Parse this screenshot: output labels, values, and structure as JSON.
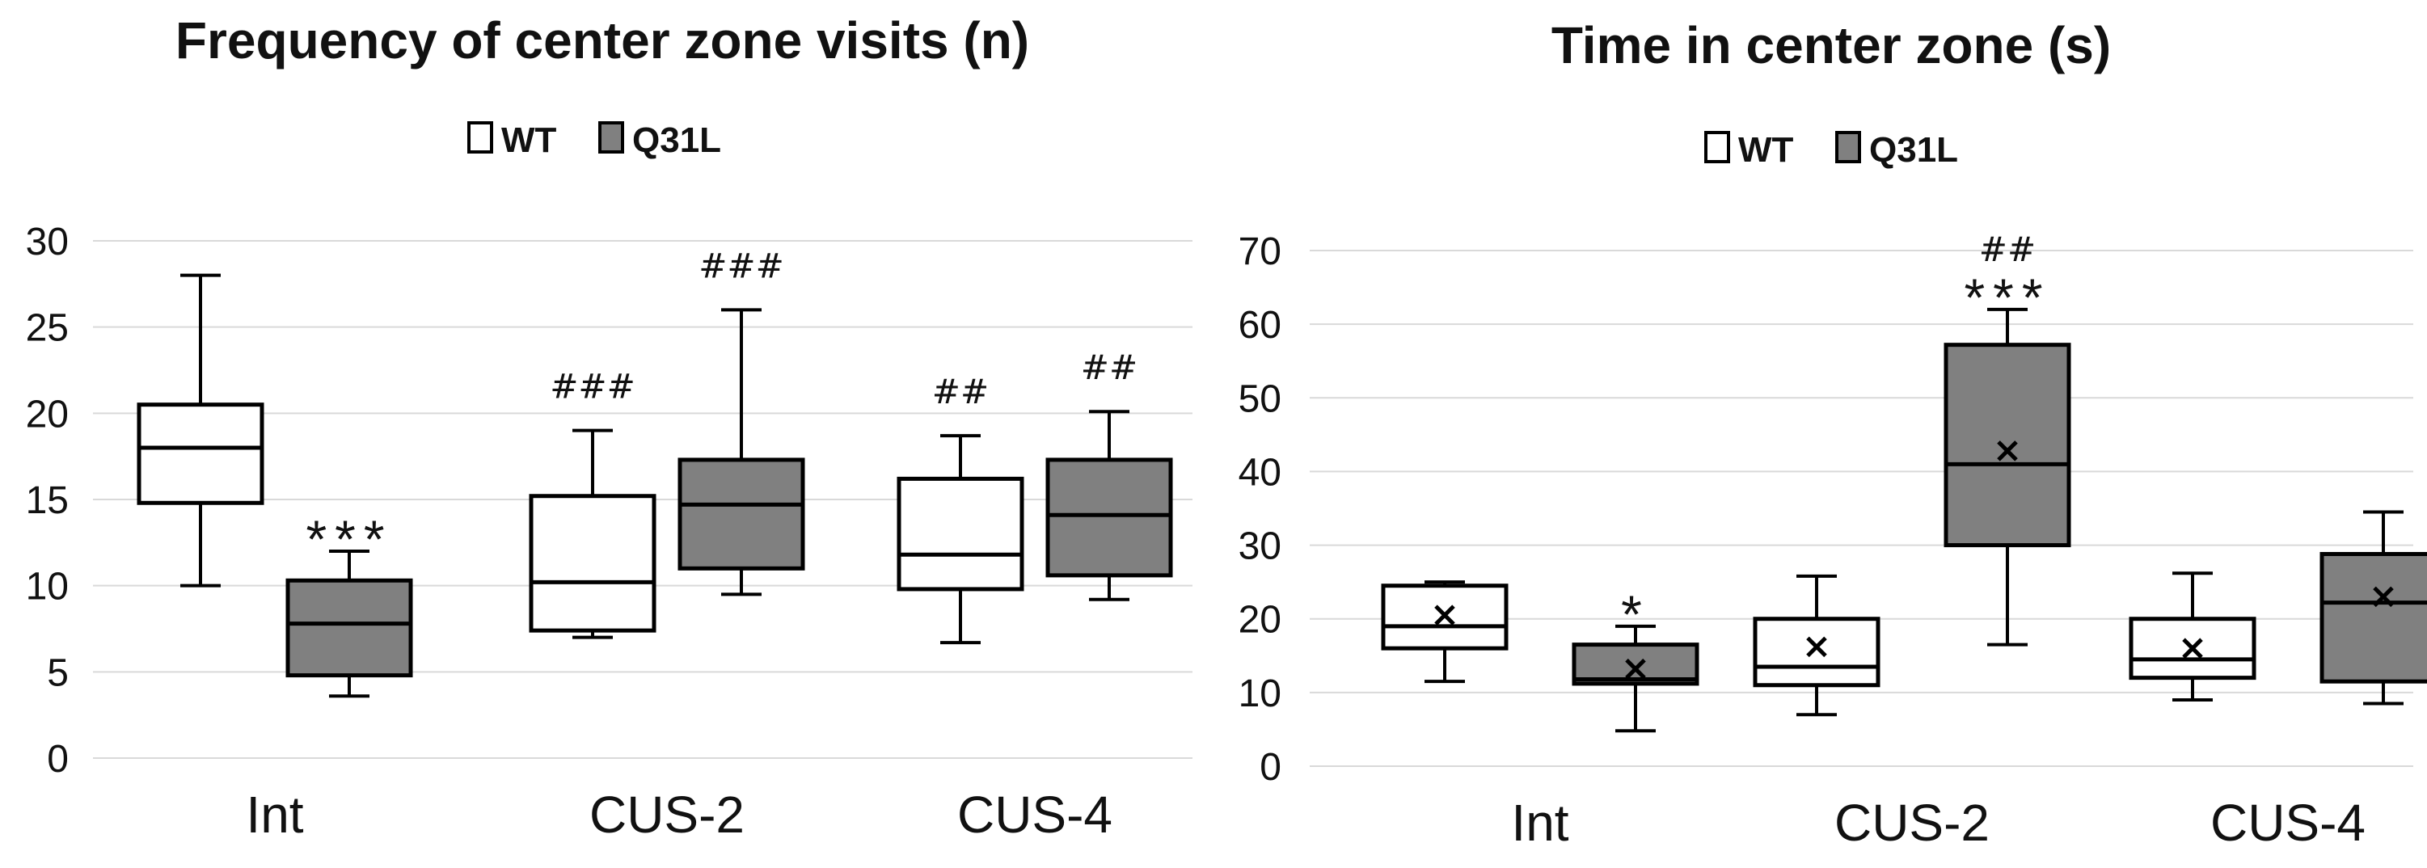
{
  "chart_data": [
    {
      "type": "boxplot",
      "title": "Frequency of center zone visits (n)",
      "xlabel": "",
      "ylabel": "",
      "ylim": [
        0,
        30
      ],
      "yticks": [
        0,
        5,
        10,
        15,
        20,
        25,
        30
      ],
      "grid": true,
      "legend": {
        "position": "top-center",
        "entries": [
          "WT",
          "Q31L"
        ]
      },
      "categories": [
        "Int",
        "CUS-2",
        "CUS-4"
      ],
      "series": [
        {
          "name": "WT",
          "color": "#ffffff",
          "boxes": [
            {
              "min": 10,
              "q1": 14.8,
              "median": 18,
              "q3": 20.5,
              "max": 28,
              "annotation": ""
            },
            {
              "min": 7,
              "q1": 7.4,
              "median": 10.2,
              "q3": 15.2,
              "max": 19,
              "annotation": "###"
            },
            {
              "min": 6.7,
              "q1": 9.8,
              "median": 11.8,
              "q3": 16.2,
              "max": 18.7,
              "annotation": "##"
            }
          ]
        },
        {
          "name": "Q31L",
          "color": "#808080",
          "boxes": [
            {
              "min": 3.6,
              "q1": 4.8,
              "median": 7.8,
              "q3": 10.3,
              "max": 12,
              "annotation": "***"
            },
            {
              "min": 9.5,
              "q1": 11,
              "median": 14.7,
              "q3": 17.3,
              "max": 26,
              "annotation": "###"
            },
            {
              "min": 9.2,
              "q1": 10.6,
              "median": 14.1,
              "q3": 17.3,
              "max": 20.1,
              "annotation": "##"
            }
          ]
        }
      ]
    },
    {
      "type": "boxplot",
      "title": "Time in center zone (s)",
      "xlabel": "",
      "ylabel": "",
      "ylim": [
        0,
        70
      ],
      "yticks": [
        0,
        10,
        20,
        30,
        40,
        50,
        60,
        70
      ],
      "grid": true,
      "legend": {
        "position": "top-center",
        "entries": [
          "WT",
          "Q31L"
        ]
      },
      "categories": [
        "Int",
        "CUS-2",
        "CUS-4"
      ],
      "series": [
        {
          "name": "WT",
          "color": "#ffffff",
          "boxes": [
            {
              "min": 11.5,
              "q1": 16,
              "median": 19,
              "q3": 24.5,
              "max": 25,
              "mean": 20.5,
              "annotation": ""
            },
            {
              "min": 7,
              "q1": 11,
              "median": 13.5,
              "q3": 20,
              "max": 25.8,
              "mean": 16.2,
              "annotation": ""
            },
            {
              "min": 9,
              "q1": 12,
              "median": 14.5,
              "q3": 20,
              "max": 26.2,
              "mean": 16,
              "annotation": ""
            }
          ]
        },
        {
          "name": "Q31L",
          "color": "#808080",
          "boxes": [
            {
              "min": 4.8,
              "q1": 11.2,
              "median": 11.8,
              "q3": 16.5,
              "max": 19,
              "mean": 13.2,
              "annotation": "*"
            },
            {
              "min": 16.5,
              "q1": 30,
              "median": 41,
              "q3": 57.2,
              "max": 62,
              "mean": 42.8,
              "annotation": "***",
              "annotation2": "##"
            },
            {
              "min": 8.5,
              "q1": 11.5,
              "median": 22.2,
              "q3": 28.8,
              "max": 34.5,
              "mean": 23,
              "annotation": ""
            }
          ]
        }
      ]
    }
  ]
}
